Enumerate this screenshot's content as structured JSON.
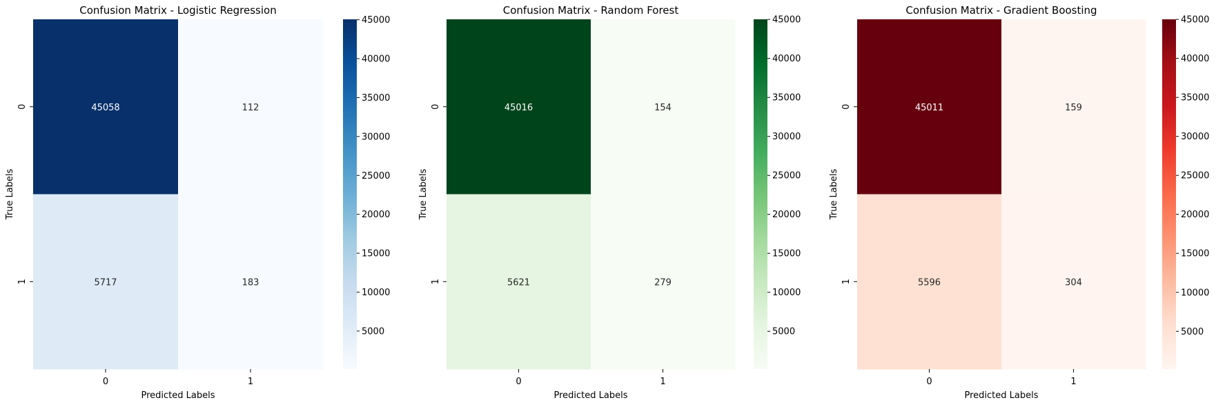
{
  "chart_data": [
    {
      "type": "heatmap",
      "title": "Confusion Matrix - Logistic Regression",
      "xlabel": "Predicted Labels",
      "ylabel": "True Labels",
      "x_categories": [
        "0",
        "1"
      ],
      "y_categories": [
        "0",
        "1"
      ],
      "values": [
        [
          45058,
          112
        ],
        [
          5717,
          183
        ]
      ],
      "colormap": "Blues",
      "colors": [
        "#f7fbff",
        "#deebf7",
        "#c6dbef",
        "#9ecae1",
        "#6baed6",
        "#4292c6",
        "#2171b5",
        "#08519c",
        "#08306b"
      ],
      "colorbar_range": [
        112,
        45058
      ],
      "colorbar_ticks": [
        5000,
        10000,
        15000,
        20000,
        25000,
        30000,
        35000,
        40000,
        45000
      ]
    },
    {
      "type": "heatmap",
      "title": "Confusion Matrix - Random Forest",
      "xlabel": "Predicted Labels",
      "ylabel": "True Labels",
      "x_categories": [
        "0",
        "1"
      ],
      "y_categories": [
        "0",
        "1"
      ],
      "values": [
        [
          45016,
          154
        ],
        [
          5621,
          279
        ]
      ],
      "colormap": "Greens",
      "colors": [
        "#f7fcf5",
        "#e5f5e0",
        "#c7e9c0",
        "#a1d99b",
        "#74c476",
        "#41ab5d",
        "#238b45",
        "#006d2c",
        "#00441b"
      ],
      "colorbar_range": [
        154,
        45016
      ],
      "colorbar_ticks": [
        5000,
        10000,
        15000,
        20000,
        25000,
        30000,
        35000,
        40000,
        45000
      ]
    },
    {
      "type": "heatmap",
      "title": "Confusion Matrix - Gradient Boosting",
      "xlabel": "Predicted Labels",
      "ylabel": "True Labels",
      "x_categories": [
        "0",
        "1"
      ],
      "y_categories": [
        "0",
        "1"
      ],
      "values": [
        [
          45011,
          159
        ],
        [
          5596,
          304
        ]
      ],
      "colormap": "Reds",
      "colors": [
        "#fff5f0",
        "#fee0d2",
        "#fcbba1",
        "#fc9272",
        "#fb6a4a",
        "#ef3b2c",
        "#cb181d",
        "#a50f15",
        "#67000d"
      ],
      "colorbar_range": [
        159,
        45011
      ],
      "colorbar_ticks": [
        5000,
        10000,
        15000,
        20000,
        25000,
        30000,
        35000,
        40000,
        45000
      ]
    }
  ]
}
